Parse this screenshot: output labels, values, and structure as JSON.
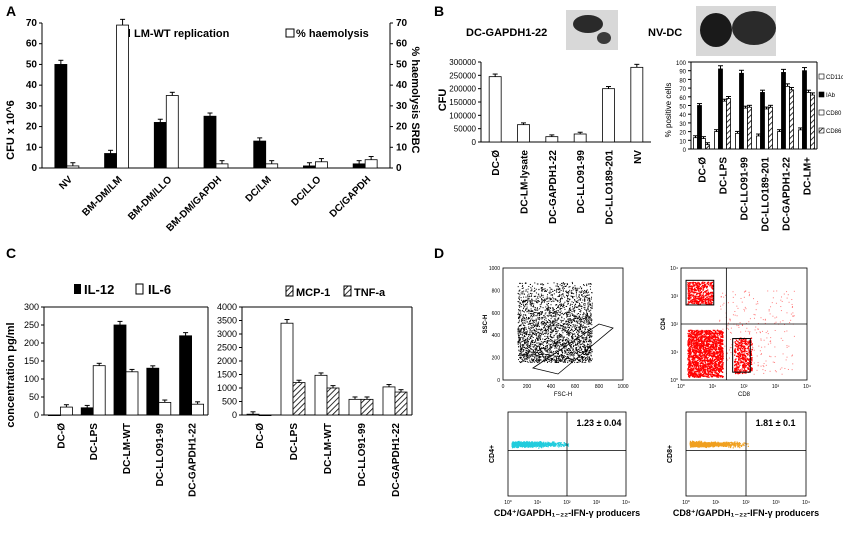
{
  "panels": {
    "A": "A",
    "B": "B",
    "C": "C",
    "D": "D"
  },
  "chart_data": [
    {
      "id": "A",
      "type": "bar",
      "title": "",
      "ylabel": "CFU x 10^6",
      "ylabel_right": "% haemolysis SRBC",
      "ylim": [
        0,
        70
      ],
      "ylim_right": [
        0,
        70
      ],
      "yticks": [
        0,
        10,
        20,
        30,
        40,
        50,
        60,
        70
      ],
      "categories": [
        "NV",
        "BM-DM/LM",
        "BM-DM/LLO",
        "BM-DM/GAPDH",
        "DC/LM",
        "DC/LLO",
        "DC/GAPDH"
      ],
      "series": [
        {
          "name": "LM-WT replication",
          "fill": "#000000",
          "values": [
            50,
            7,
            22,
            25,
            13,
            1,
            2
          ]
        },
        {
          "name": "% haemolysis",
          "fill": "#ffffff",
          "values": [
            1,
            69,
            35,
            2,
            2,
            3,
            4
          ]
        }
      ]
    },
    {
      "id": "B-left",
      "type": "bar",
      "title": "DC-GAPDH1-22",
      "title_alt": "NV-DC",
      "ylabel": "CFU",
      "ylim": [
        0,
        300000
      ],
      "yticks": [
        0,
        50000,
        100000,
        150000,
        200000,
        250000,
        300000
      ],
      "ytick_labels": [
        "0",
        "50000",
        "100000",
        "150000",
        "200000",
        "250000",
        "300000"
      ],
      "categories": [
        "DC-Ø",
        "DC-LM-lysate",
        "DC-GAPDH1-22",
        "DC-LLO91-99",
        "DC-LLO189-201",
        "NV"
      ],
      "series": [
        {
          "name": "CFU",
          "fill": "#ffffff",
          "values": [
            245000,
            65000,
            20000,
            30000,
            200000,
            280000
          ]
        }
      ]
    },
    {
      "id": "B-right",
      "type": "bar",
      "ylabel": "% positive cells",
      "ylim": [
        0,
        100
      ],
      "yticks": [
        0,
        10,
        20,
        30,
        40,
        50,
        60,
        70,
        80,
        90,
        100
      ],
      "categories": [
        "DC-Ø",
        "DC-LPS",
        "DC-LLO91-99",
        "DC-LLO189-201",
        "DC-GAPDH1-22",
        "DC-LM+"
      ],
      "series": [
        {
          "name": "CD11c",
          "fill": "#ffffff",
          "values": [
            13,
            20,
            18,
            15,
            20,
            22
          ]
        },
        {
          "name": "IAb",
          "fill": "#000000",
          "values": [
            50,
            92,
            87,
            65,
            88,
            90
          ]
        },
        {
          "name": "CD80",
          "fill": "#ffffff",
          "values": [
            12,
            55,
            47,
            46,
            72,
            65
          ]
        },
        {
          "name": "CD86",
          "fill": "hatch",
          "values": [
            5,
            58,
            48,
            48,
            68,
            62
          ]
        }
      ]
    },
    {
      "id": "C-left",
      "type": "bar",
      "ylabel": "concentration pg/ml",
      "ylim": [
        0,
        300
      ],
      "yticks": [
        0,
        50,
        100,
        150,
        200,
        250,
        300
      ],
      "categories": [
        "DC-Ø",
        "DC-LPS",
        "DC-LM-WT",
        "DC-LLO91-99",
        "DC-GAPDH1-22"
      ],
      "series": [
        {
          "name": "IL-12",
          "fill": "#000000",
          "values": [
            0,
            20,
            250,
            130,
            220
          ]
        },
        {
          "name": "IL-6",
          "fill": "#ffffff",
          "values": [
            22,
            137,
            120,
            35,
            30
          ]
        }
      ]
    },
    {
      "id": "C-right",
      "type": "bar",
      "ylim": [
        0,
        4000
      ],
      "yticks": [
        0,
        500,
        1000,
        1500,
        2000,
        2500,
        3000,
        3500,
        4000
      ],
      "categories": [
        "DC-Ø",
        "DC-LPS",
        "DC-LM-WT",
        "DC-LLO91-99",
        "DC-GAPDH1-22"
      ],
      "series": [
        {
          "name": "MCP-1",
          "fill": "#ffffff",
          "values": [
            30,
            3400,
            1470,
            580,
            1040
          ]
        },
        {
          "name": "TNF-a",
          "fill": "hatch",
          "values": [
            0,
            1200,
            1000,
            580,
            850
          ]
        }
      ]
    },
    {
      "id": "D",
      "type": "scatter",
      "plots": [
        {
          "xlabel": "FSC-H",
          "ylabel": "SSC-H",
          "xticks": [
            "0",
            "200",
            "400",
            "600",
            "800",
            "1000"
          ],
          "yticks": [
            "0",
            "200",
            "400",
            "600",
            "800",
            "1000"
          ],
          "color": "#000000"
        },
        {
          "xlabel": "CD8",
          "ylabel": "CD4",
          "xticks": [
            "10⁰",
            "10¹",
            "10²",
            "10³",
            "10⁴"
          ],
          "yticks": [
            "10⁰",
            "10¹",
            "10²",
            "10³",
            "10⁴"
          ],
          "color": "#ff0000"
        },
        {
          "xlabel": "CD4⁺/GAPDH₁₋₂₂-IFN-γ producers",
          "ylabel": "CD4+",
          "quadrant_value": "1.23 ± 0.04",
          "xticks": [
            "10⁰",
            "10¹",
            "10²",
            "10³",
            "10⁴"
          ],
          "color": "#22ccdd"
        },
        {
          "xlabel": "CD8⁺/GAPDH₁₋₂₂-IFN-γ producers",
          "ylabel": "CD8+",
          "quadrant_value": "1.81 ± 0.1",
          "xticks": [
            "10⁰",
            "10¹",
            "10²",
            "10³",
            "10⁴"
          ],
          "color": "#f0a020"
        }
      ]
    }
  ]
}
